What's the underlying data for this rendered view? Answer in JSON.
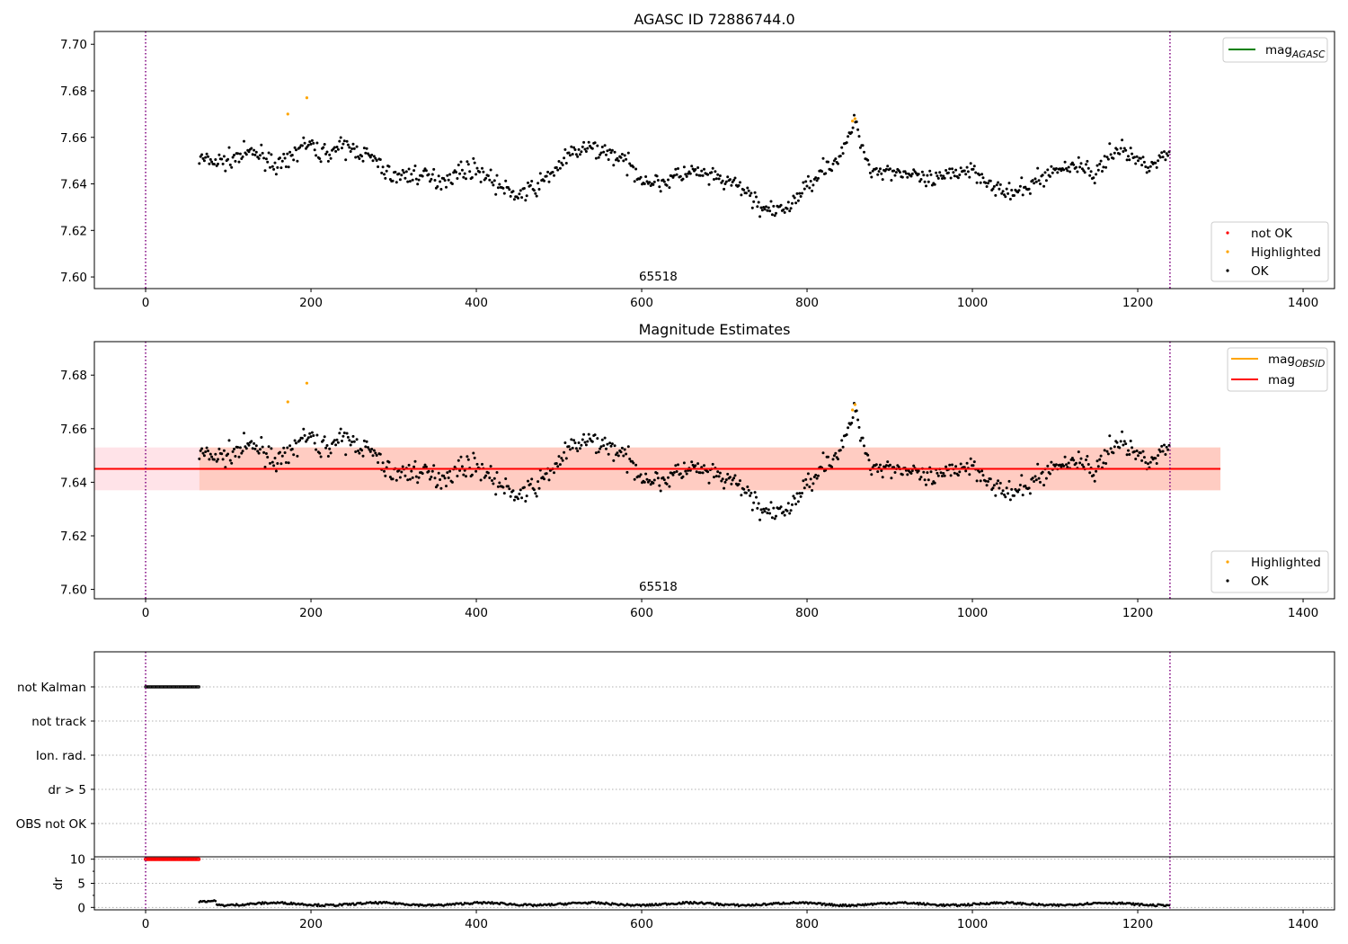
{
  "colors": {
    "ok": "#000000",
    "not_ok": "#ff0000",
    "highlighted": "#ffa500",
    "mag_agasc": "#008000",
    "mag_obsid": "#ffa500",
    "mag": "#ff0000",
    "band_pink": "#ffc0cb",
    "band_orange": "#ffa07a",
    "vline": "#800080",
    "grid": "#b0b0b0"
  },
  "obsid_label": "65518",
  "chart_data": [
    {
      "id": "top",
      "type": "scatter",
      "title": "AGASC ID 72886744.0",
      "xlim": [
        -62,
        1438
      ],
      "ylim": [
        7.595,
        7.7055
      ],
      "xticks": [
        0,
        200,
        400,
        600,
        800,
        1000,
        1200,
        1400
      ],
      "yticks": [
        7.6,
        7.62,
        7.64,
        7.66,
        7.68,
        7.7
      ],
      "ytick_labels": [
        "7.60",
        "7.62",
        "7.64",
        "7.66",
        "7.68",
        "7.70"
      ],
      "vlines": [
        0,
        1239
      ],
      "series_model": {
        "x_start": 65,
        "x_end": 1239,
        "step": 1.5,
        "mean": 7.645
      },
      "highlighted_points": [
        [
          172,
          7.67
        ],
        [
          195,
          7.677
        ],
        [
          855,
          7.667
        ],
        [
          858,
          7.668
        ]
      ],
      "legend_lines": [
        {
          "name": "mag",
          "subscript": "AGASC",
          "color_key": "mag_agasc"
        }
      ],
      "legend_markers": [
        {
          "name": "not OK",
          "color_key": "not_ok"
        },
        {
          "name": "Highlighted",
          "color_key": "highlighted"
        },
        {
          "name": "OK",
          "color_key": "ok"
        }
      ]
    },
    {
      "id": "mid",
      "type": "scatter",
      "title": "Magnitude Estimates",
      "xlim": [
        -62,
        1438
      ],
      "ylim": [
        7.5965,
        7.6925
      ],
      "xticks": [
        0,
        200,
        400,
        600,
        800,
        1000,
        1200,
        1400
      ],
      "yticks": [
        7.6,
        7.62,
        7.64,
        7.66,
        7.68
      ],
      "ytick_labels": [
        "7.60",
        "7.62",
        "7.64",
        "7.66",
        "7.68"
      ],
      "vlines": [
        0,
        1239
      ],
      "mag_line": 7.645,
      "band": {
        "x": [
          -62,
          1300
        ],
        "y": [
          7.637,
          7.653
        ]
      },
      "highlighted_points": [
        [
          172,
          7.67
        ],
        [
          195,
          7.677
        ],
        [
          855,
          7.667
        ],
        [
          858,
          7.669
        ]
      ],
      "legend_lines": [
        {
          "name": "mag",
          "subscript": "OBSID",
          "color_key": "mag_obsid"
        },
        {
          "name": "mag",
          "subscript": "",
          "color_key": "mag"
        }
      ],
      "legend_markers": [
        {
          "name": "Highlighted",
          "color_key": "highlighted"
        },
        {
          "name": "OK",
          "color_key": "ok"
        }
      ]
    },
    {
      "id": "flags",
      "type": "scatter",
      "xlim": [
        -62,
        1438
      ],
      "categories": [
        "not Kalman",
        "not track",
        "Ion. rad.",
        "dr > 5",
        "OBS not OK"
      ],
      "vlines": [
        0,
        1239
      ],
      "segments": [
        {
          "category": "not Kalman",
          "x": [
            0,
            65
          ]
        }
      ]
    },
    {
      "id": "dr",
      "type": "scatter",
      "ylabel": "dr",
      "xlim": [
        -62,
        1438
      ],
      "ylim": [
        -0.5,
        10.5
      ],
      "xticks": [
        0,
        200,
        400,
        600,
        800,
        1000,
        1200,
        1400
      ],
      "yticks": [
        0,
        5,
        10
      ],
      "ytick_labels": [
        "0",
        "5",
        "10"
      ],
      "vlines": [
        0,
        1239
      ],
      "capped": {
        "x": [
          0,
          65
        ],
        "value": 10
      },
      "series_model": {
        "x_start": 65,
        "x_end": 1239,
        "step": 1.5,
        "mean": 0.5
      }
    }
  ]
}
